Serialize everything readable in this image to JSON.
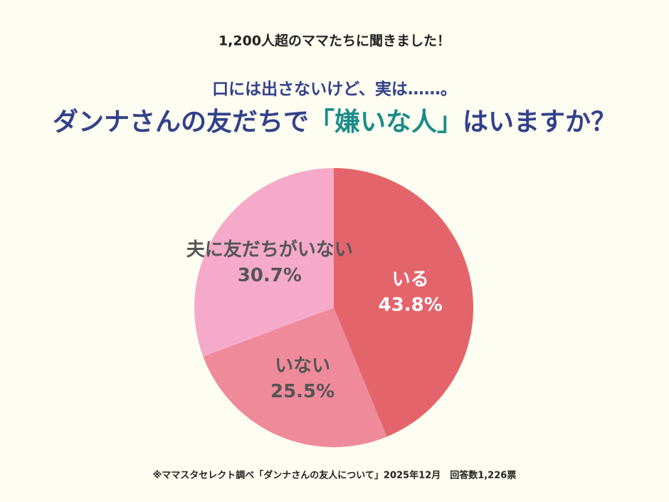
{
  "chart_data": {
    "type": "pie",
    "kicker": "1,200人超のママたちに聞きました！",
    "subtitle": "口には出さないけど、実は……。",
    "title": [
      "ダンナさんの友だちで",
      "「嫌いな人」",
      "はいますか？"
    ],
    "title_colors": [
      "#33418a",
      "#1b8c88",
      "#33418a"
    ],
    "categories": [
      "いる",
      "いない",
      "夫に友だちがいない"
    ],
    "values": [
      43.8,
      25.5,
      30.7
    ],
    "value_labels": [
      "43.8%",
      "25.5%",
      "30.7%"
    ],
    "colors": [
      "#e4646b",
      "#ef8a9b",
      "#f5aac9"
    ],
    "label_colors": [
      "#ffffff",
      "#555555",
      "#555555"
    ],
    "source": "※ママスタセレクト調べ「ダンナさんの友人について」2025年12月　回答数1,226票"
  }
}
